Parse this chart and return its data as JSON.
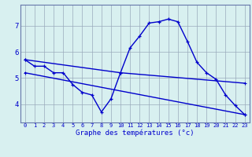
{
  "hours": [
    0,
    1,
    2,
    3,
    4,
    5,
    6,
    7,
    8,
    9,
    10,
    11,
    12,
    13,
    14,
    15,
    16,
    17,
    18,
    19,
    20,
    21,
    22,
    23
  ],
  "temp_curve": [
    5.7,
    5.45,
    5.45,
    5.2,
    5.2,
    4.75,
    4.45,
    4.35,
    3.7,
    4.2,
    5.2,
    6.15,
    6.6,
    7.1,
    7.15,
    7.25,
    7.15,
    6.4,
    5.6,
    5.2,
    4.95,
    4.35,
    3.95,
    3.6
  ],
  "upper_line_x": [
    0,
    10,
    23
  ],
  "upper_line_y": [
    5.7,
    5.2,
    4.8
  ],
  "lower_line_x": [
    0,
    23
  ],
  "lower_line_y": [
    5.2,
    3.6
  ],
  "line_color": "#0000cc",
  "bg_color": "#d8f0f0",
  "grid_color": "#99aabb",
  "xlabel": "Graphe des températures (°c)",
  "ylim": [
    3.3,
    7.8
  ],
  "yticks": [
    4,
    5,
    6,
    7
  ],
  "xticks": [
    0,
    1,
    2,
    3,
    4,
    5,
    6,
    7,
    8,
    9,
    10,
    11,
    12,
    13,
    14,
    15,
    16,
    17,
    18,
    19,
    20,
    21,
    22,
    23
  ]
}
